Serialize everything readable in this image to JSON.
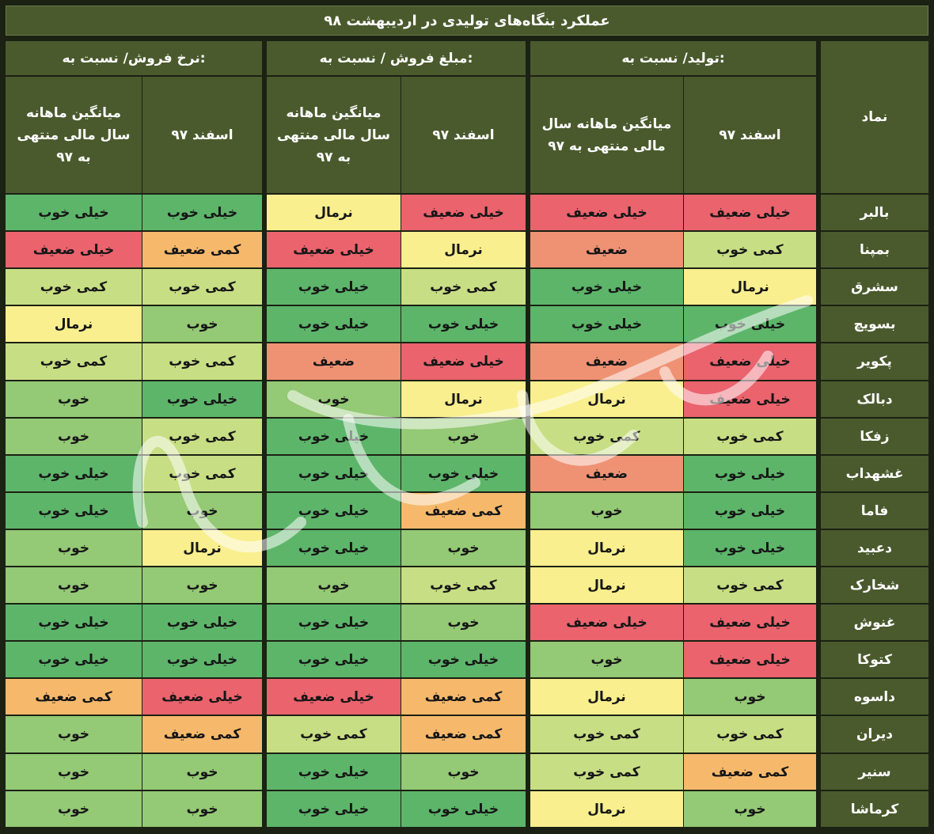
{
  "title": "عملکرد بنگاه‌های تولیدی در اردیبهشت ۹۸",
  "headers": {
    "symbol": "نماد",
    "groups": [
      "تولید/ نسبت به:",
      "مبلغ فروش / نسبت به:",
      "نرخ فروش/ نسبت به:"
    ],
    "sub": [
      [
        "اسفند ۹۷",
        "میانگین ماهانه سال\nمالی منتهی به ۹۷"
      ],
      [
        "اسفند ۹۷",
        "میانگین ماهانه\nسال مالی منتهی\nبه ۹۷"
      ],
      [
        "اسفند ۹۷",
        "میانگین ماهانه\nسال مالی منتهی\nبه ۹۷"
      ]
    ]
  },
  "colors": {
    "خیلی خوب": "#5db56a",
    "خوب": "#94c975",
    "کمی خوب": "#c8de84",
    "نرمال": "#f9ef8e",
    "کمی ضعیف": "#f6b96c",
    "ضعیف": "#ef9274",
    "خیلی ضعیف": "#ea636d"
  },
  "rows": [
    {
      "symbol": "بالبر",
      "values": [
        "خیلی ضعیف",
        "خیلی ضعیف",
        "خیلی ضعیف",
        "نرمال",
        "خیلی خوب",
        "خیلی خوب"
      ]
    },
    {
      "symbol": "بمپنا",
      "values": [
        "کمی خوب",
        "ضعیف",
        "نرمال",
        "خیلی ضعیف",
        "کمی ضعیف",
        "خیلی ضعیف"
      ]
    },
    {
      "symbol": "سشرق",
      "values": [
        "نرمال",
        "خیلی خوب",
        "کمی خوب",
        "خیلی خوب",
        "کمی خوب",
        "کمی خوب"
      ]
    },
    {
      "symbol": "بسویچ",
      "values": [
        "خیلی خوب",
        "خیلی خوب",
        "خیلی خوب",
        "خیلی خوب",
        "خوب",
        "نرمال"
      ]
    },
    {
      "symbol": "پکویر",
      "values": [
        "خیلی ضعیف",
        "ضعیف",
        "خیلی ضعیف",
        "ضعیف",
        "کمی خوب",
        "کمی خوب"
      ]
    },
    {
      "symbol": "دبالک",
      "values": [
        "خیلی ضعیف",
        "نرمال",
        "نرمال",
        "خوب",
        "خیلی خوب",
        "خوب"
      ]
    },
    {
      "symbol": "زفکا",
      "values": [
        "کمی خوب",
        "کمی خوب",
        "خوب",
        "خیلی خوب",
        "کمی خوب",
        "خوب"
      ]
    },
    {
      "symbol": "غشهداب",
      "values": [
        "خیلی خوب",
        "ضعیف",
        "خیلی خوب",
        "خیلی خوب",
        "کمی خوب",
        "خیلی خوب"
      ]
    },
    {
      "symbol": "فاما",
      "values": [
        "خیلی خوب",
        "خوب",
        "کمی ضعیف",
        "خیلی خوب",
        "خوب",
        "خیلی خوب"
      ]
    },
    {
      "symbol": "دعبید",
      "values": [
        "خیلی خوب",
        "نرمال",
        "خوب",
        "خیلی خوب",
        "نرمال",
        "خوب"
      ]
    },
    {
      "symbol": "شخارک",
      "values": [
        "کمی خوب",
        "نرمال",
        "کمی خوب",
        "خوب",
        "خوب",
        "خوب"
      ]
    },
    {
      "symbol": "غنوش",
      "values": [
        "خیلی ضعیف",
        "خیلی ضعیف",
        "خوب",
        "خیلی خوب",
        "خیلی خوب",
        "خیلی خوب"
      ]
    },
    {
      "symbol": "کتوکا",
      "values": [
        "خیلی ضعیف",
        "خوب",
        "خیلی خوب",
        "خیلی خوب",
        "خیلی خوب",
        "خیلی خوب"
      ]
    },
    {
      "symbol": "داسوه",
      "values": [
        "خوب",
        "نرمال",
        "کمی ضعیف",
        "خیلی ضعیف",
        "خیلی ضعیف",
        "کمی ضعیف"
      ]
    },
    {
      "symbol": "دیران",
      "values": [
        "کمی خوب",
        "کمی خوب",
        "کمی ضعیف",
        "کمی خوب",
        "کمی ضعیف",
        "خوب"
      ]
    },
    {
      "symbol": "سنیر",
      "values": [
        "کمی ضعیف",
        "کمی خوب",
        "خوب",
        "خیلی خوب",
        "خوب",
        "خوب"
      ]
    },
    {
      "symbol": "کرماشا",
      "values": [
        "خوب",
        "نرمال",
        "خیلی خوب",
        "خیلی خوب",
        "خوب",
        "خوب"
      ]
    }
  ]
}
